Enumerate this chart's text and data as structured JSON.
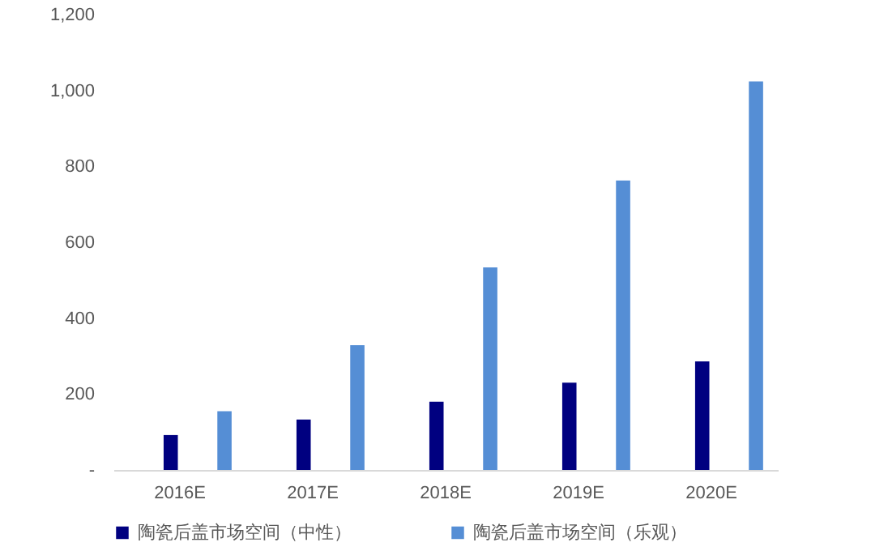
{
  "chart_data": {
    "type": "bar",
    "categories": [
      "2016E",
      "2017E",
      "2018E",
      "2019E",
      "2020E"
    ],
    "series": [
      {
        "name": "陶瓷后盖市场空间（中性）",
        "color": "#000080",
        "values": [
          92,
          133,
          180,
          230,
          286
        ]
      },
      {
        "name": "陶瓷后盖市场空间（乐观）",
        "color": "#558ed5",
        "values": [
          155,
          329,
          534,
          763,
          1024
        ]
      }
    ],
    "ylim": [
      0,
      1200
    ],
    "yticks": [
      {
        "value": 0,
        "label": "-"
      },
      200,
      400,
      600,
      800,
      {
        "value": 1000,
        "label": "1,000"
      },
      {
        "value": 1200,
        "label": "1,200"
      }
    ],
    "grid": false,
    "legend": "bottom left"
  }
}
